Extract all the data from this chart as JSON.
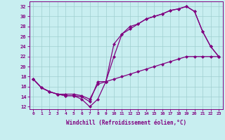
{
  "xlabel": "Windchill (Refroidissement éolien,°C)",
  "background_color": "#c8eef0",
  "line_color": "#800080",
  "xlim": [
    -0.5,
    23.5
  ],
  "ylim": [
    11.5,
    33.0
  ],
  "xticks": [
    0,
    1,
    2,
    3,
    4,
    5,
    6,
    7,
    8,
    9,
    10,
    11,
    12,
    13,
    14,
    15,
    16,
    17,
    18,
    19,
    20,
    21,
    22,
    23
  ],
  "yticks": [
    12,
    14,
    16,
    18,
    20,
    22,
    24,
    26,
    28,
    30,
    32
  ],
  "series1_x": [
    0,
    1,
    2,
    3,
    4,
    5,
    6,
    7,
    8,
    9,
    10,
    11,
    12,
    13,
    14,
    15,
    16,
    17,
    18,
    19,
    20,
    21,
    22,
    23
  ],
  "series1_y": [
    17.5,
    15.8,
    15.0,
    14.5,
    14.2,
    14.2,
    13.5,
    12.0,
    13.5,
    17.0,
    22.0,
    26.5,
    27.5,
    28.5,
    29.5,
    30.0,
    30.5,
    31.2,
    31.5,
    32.0,
    31.0,
    27.0,
    24.0,
    22.0
  ],
  "series2_x": [
    0,
    1,
    2,
    3,
    4,
    5,
    6,
    7,
    8,
    9,
    10,
    11,
    12,
    13,
    14,
    15,
    16,
    17,
    18,
    19,
    20,
    21,
    22,
    23
  ],
  "series2_y": [
    17.5,
    15.8,
    15.0,
    14.5,
    14.2,
    14.2,
    14.0,
    13.0,
    17.0,
    17.0,
    24.5,
    26.5,
    28.0,
    28.5,
    29.5,
    30.0,
    30.5,
    31.2,
    31.5,
    32.0,
    31.0,
    27.0,
    24.0,
    22.0
  ],
  "series3_x": [
    0,
    1,
    2,
    3,
    4,
    5,
    6,
    7,
    8,
    9,
    10,
    11,
    12,
    13,
    14,
    15,
    16,
    17,
    18,
    19,
    20,
    21,
    22,
    23
  ],
  "series3_y": [
    17.5,
    15.8,
    15.0,
    14.5,
    14.5,
    14.5,
    14.2,
    13.5,
    16.5,
    17.0,
    17.5,
    18.0,
    18.5,
    19.0,
    19.5,
    20.0,
    20.5,
    21.0,
    21.5,
    22.0,
    22.0,
    22.0,
    22.0,
    22.0
  ]
}
